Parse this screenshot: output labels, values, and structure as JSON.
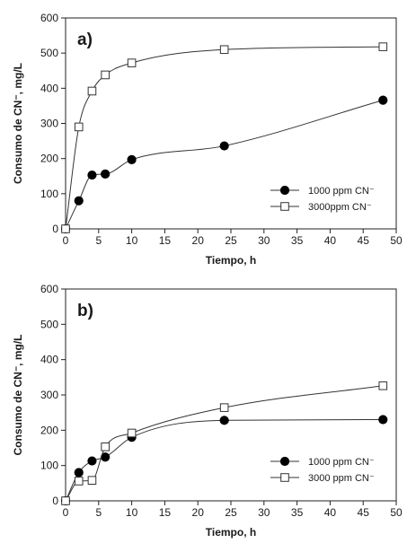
{
  "chart_data": [
    {
      "type": "line",
      "panel_label": "a)",
      "xlabel": "Tiempo, h",
      "ylabel": "Consumo de CN⁻, mg/L",
      "xlim": [
        0,
        50
      ],
      "ylim": [
        0,
        600
      ],
      "xticks": [
        0,
        5,
        10,
        15,
        20,
        25,
        30,
        35,
        40,
        45,
        50
      ],
      "yticks": [
        0,
        100,
        200,
        300,
        400,
        500,
        600
      ],
      "grid": false,
      "legend_position": "bottom-right",
      "series": [
        {
          "name": "1000 ppm CN⁻",
          "marker": "filled-circle",
          "x": [
            0,
            2,
            4,
            6,
            10,
            24,
            48
          ],
          "y": [
            0,
            80,
            153,
            156,
            197,
            236,
            366
          ]
        },
        {
          "name": "3000ppm CN⁻",
          "marker": "open-square",
          "x": [
            0,
            2,
            4,
            6,
            10,
            24,
            48
          ],
          "y": [
            0,
            290,
            392,
            438,
            472,
            510,
            518
          ]
        }
      ]
    },
    {
      "type": "line",
      "panel_label": "b)",
      "xlabel": "Tiempo, h",
      "ylabel": "Consumo de CN⁻, mg/L",
      "xlim": [
        0,
        50
      ],
      "ylim": [
        0,
        600
      ],
      "xticks": [
        0,
        5,
        10,
        15,
        20,
        25,
        30,
        35,
        40,
        45,
        50
      ],
      "yticks": [
        0,
        100,
        200,
        300,
        400,
        500,
        600
      ],
      "grid": false,
      "legend_position": "bottom-right",
      "series": [
        {
          "name": "1000 ppm CN⁻",
          "marker": "filled-circle",
          "x": [
            0,
            2,
            4,
            6,
            10,
            24,
            48
          ],
          "y": [
            0,
            80,
            113,
            124,
            180,
            228,
            230
          ]
        },
        {
          "name": "3000 ppm CN⁻",
          "marker": "open-square",
          "x": [
            0,
            2,
            4,
            6,
            10,
            24,
            48
          ],
          "y": [
            0,
            56,
            58,
            153,
            192,
            264,
            326
          ]
        }
      ]
    }
  ]
}
